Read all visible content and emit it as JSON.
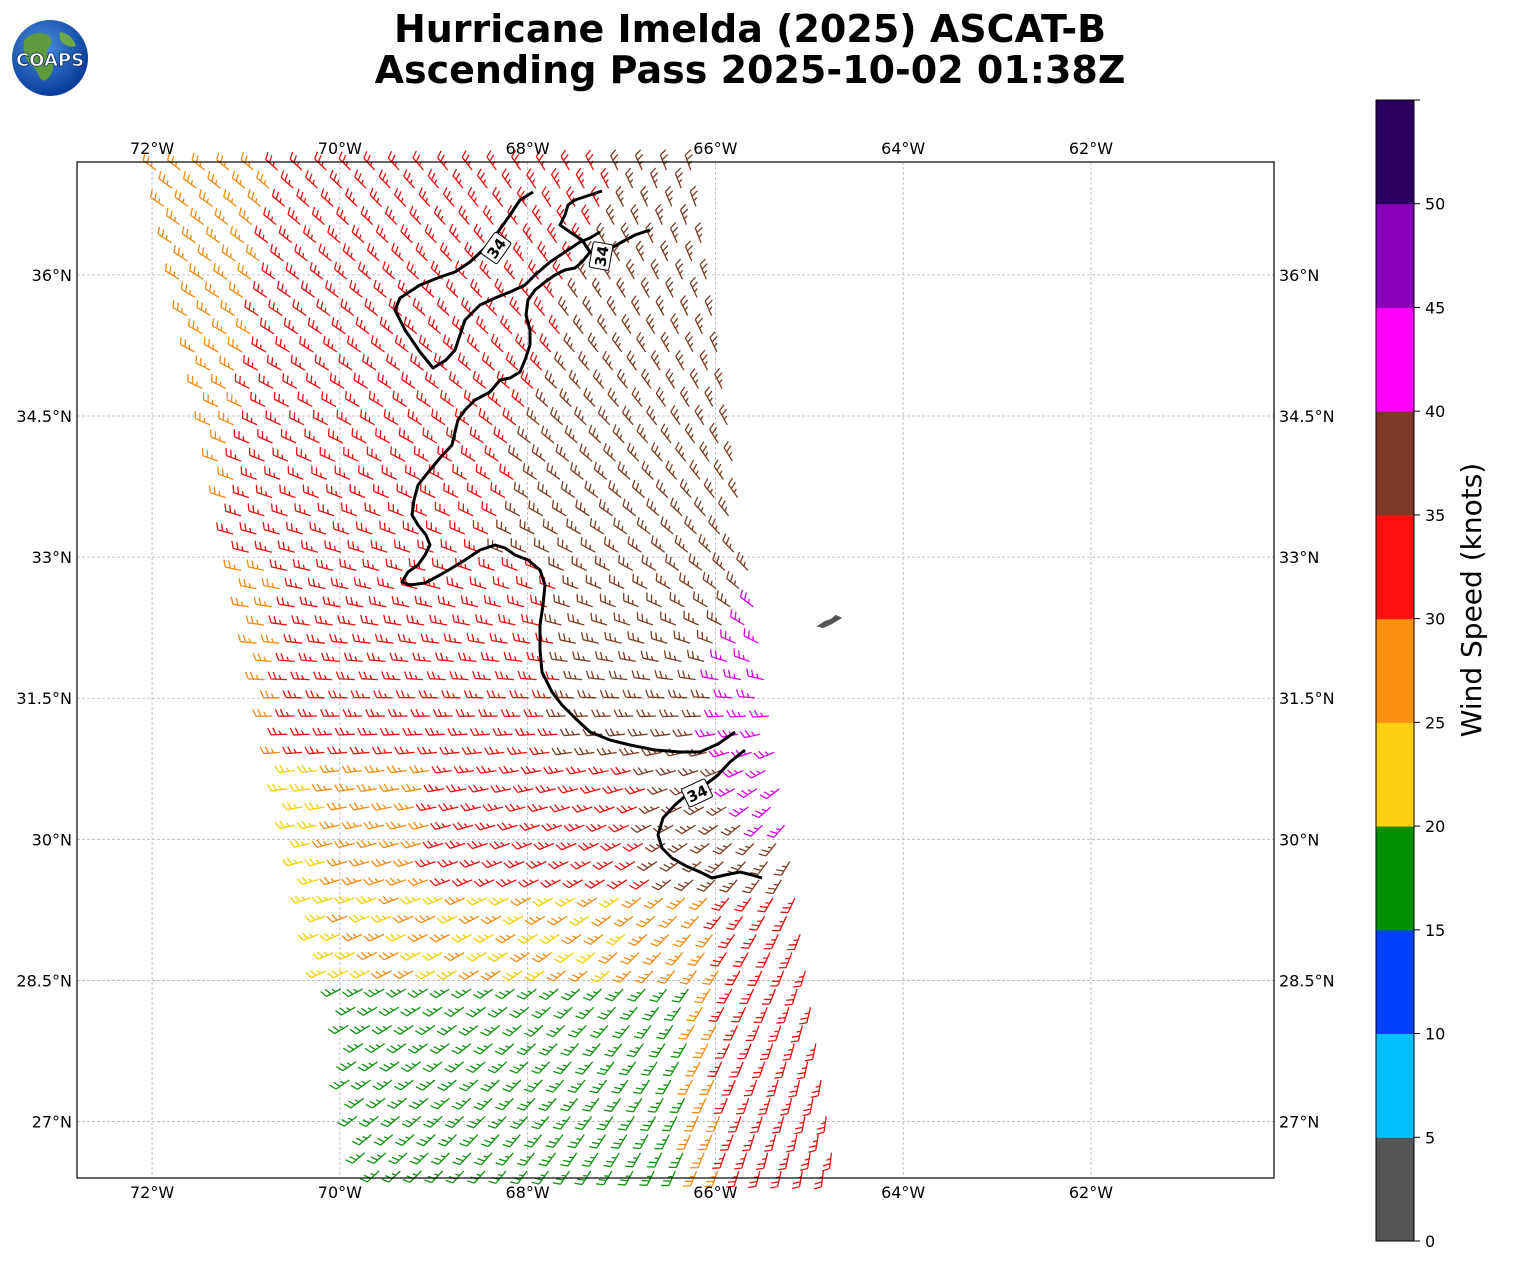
{
  "title": {
    "line1": "Hurricane Imelda (2025) ASCAT-B",
    "line2": "Ascending Pass 2025-10-02 01:38Z"
  },
  "logo": {
    "text": "COAPS",
    "icon": "globe-icon"
  },
  "map": {
    "lon_ticks": [
      "72°W",
      "70°W",
      "68°W",
      "66°W",
      "64°W",
      "62°W"
    ],
    "lat_ticks": [
      "36°N",
      "34.5°N",
      "33°N",
      "31.5°N",
      "30°N",
      "28.5°N",
      "27°N"
    ],
    "lon_range": [
      -72.8,
      -60.05
    ],
    "lat_range": [
      26.4,
      37.2
    ],
    "grid": true,
    "contour_label": "34",
    "contour_labels": [
      "34",
      "34",
      "34"
    ],
    "island_name": "bermuda-islands"
  },
  "colorbar": {
    "label": "Wind Speed (knots)",
    "ticks": [
      "0",
      "5",
      "10",
      "15",
      "20",
      "25",
      "30",
      "35",
      "40",
      "45",
      "50"
    ],
    "colors": [
      "#555555",
      "#00c0ff",
      "#0040ff",
      "#009000",
      "#ffd010",
      "#ff9010",
      "#ff1010",
      "#7c3a26",
      "#ff00ff",
      "#8800b8",
      "#2a0060"
    ]
  },
  "wind_barb_colors": {
    "yellow": "#f0d000",
    "orange": "#f28a10",
    "red": "#e81010",
    "brown": "#7a3b22",
    "magenta": "#e000e8",
    "purple": "#7a00b0",
    "green": "#109010"
  }
}
